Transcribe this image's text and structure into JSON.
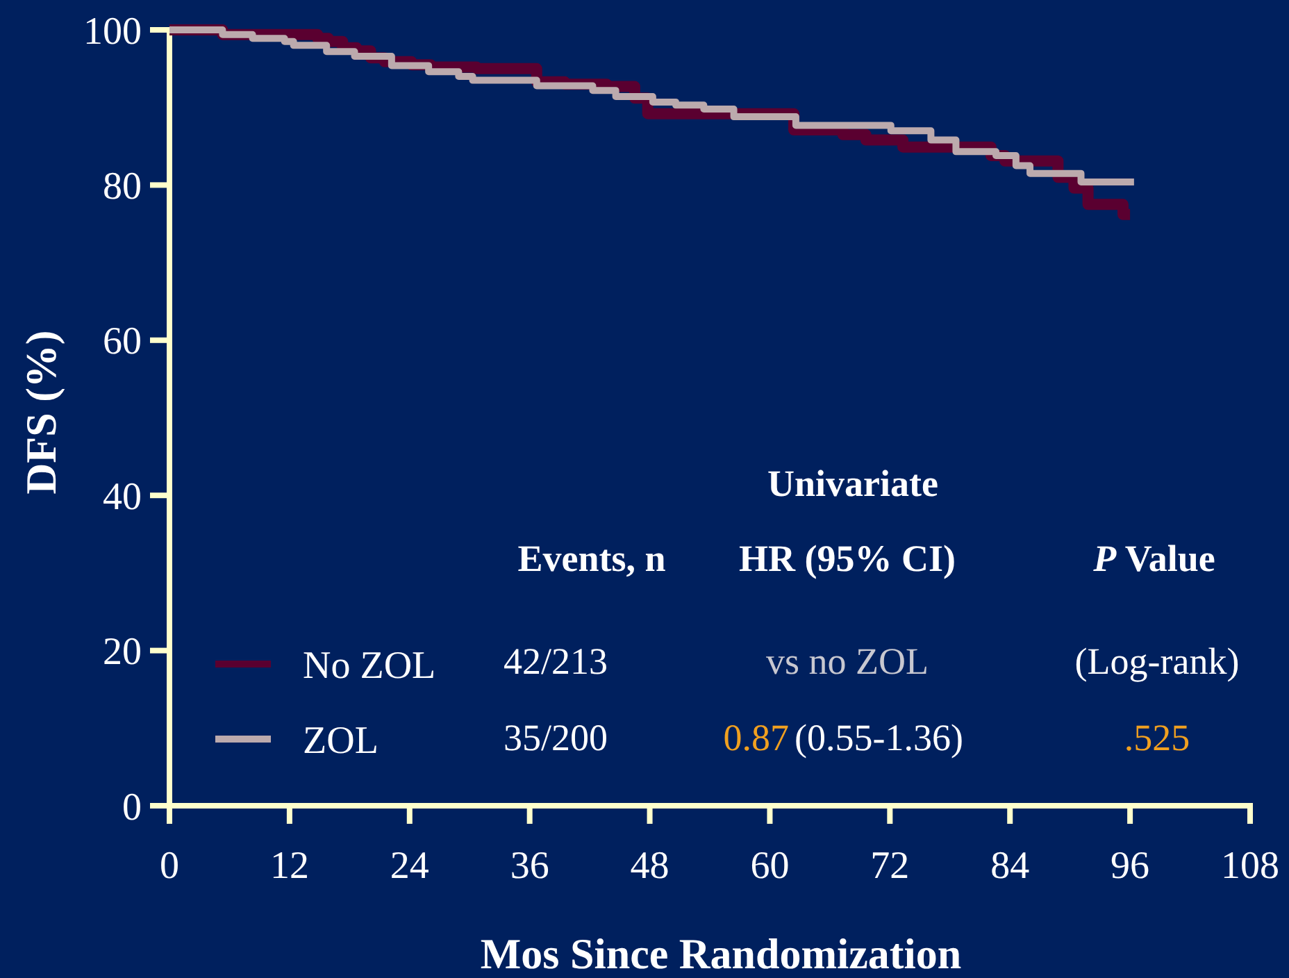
{
  "chart_data": {
    "type": "step",
    "xlabel": "Mos Since Randomization",
    "ylabel": "DFS (%)",
    "xlim": [
      0,
      108
    ],
    "xticks": [
      0,
      12,
      24,
      36,
      48,
      60,
      72,
      84,
      96,
      108
    ],
    "ylim": [
      0,
      100
    ],
    "yticks": [
      0,
      20,
      40,
      60,
      80,
      100
    ],
    "grid": false,
    "legend": "bottom left",
    "series": [
      {
        "name": "No ZOL",
        "color": "#5a0030",
        "x": [
          0,
          5.3,
          14.8,
          15.9,
          17.3,
          18.7,
          20.1,
          21.5,
          24.2,
          26.1,
          30.7,
          36.7,
          39.5,
          43.7,
          46.5,
          47.8,
          62.4,
          67.3,
          69.6,
          73.3,
          82.1,
          83.5,
          88.8,
          90.4,
          91.8,
          95.3,
          96
        ],
        "values": [
          100,
          99.4,
          98.9,
          98.5,
          97.7,
          97.3,
          96.4,
          95.9,
          95.5,
          95.2,
          95.0,
          93.3,
          93.0,
          92.7,
          91.2,
          89.2,
          87.1,
          86.5,
          85.8,
          84.9,
          83.8,
          83.1,
          81.0,
          79.6,
          77.5,
          76.2,
          76.2
        ]
      },
      {
        "name": "ZOL",
        "color": "#bcaaad",
        "x": [
          0,
          5.3,
          8.3,
          11.5,
          12.4,
          15.7,
          18.5,
          22.2,
          25.9,
          28.9,
          30.3,
          36.7,
          42.3,
          44.6,
          48.3,
          50.6,
          53.4,
          56.4,
          62.6,
          72.1,
          76.1,
          78.6,
          82.6,
          84.6,
          86.0,
          91.1,
          96.4
        ],
        "values": [
          100,
          99.4,
          98.9,
          98.5,
          98.0,
          97.2,
          96.6,
          95.4,
          94.6,
          94.0,
          93.5,
          92.8,
          92.2,
          91.4,
          90.7,
          90.3,
          89.8,
          88.8,
          87.7,
          87.0,
          85.8,
          84.3,
          83.8,
          82.5,
          81.5,
          80.4,
          80.4
        ]
      }
    ],
    "annotations": [
      "Univariate",
      "Events, n",
      "HR (95% CI)",
      "P Value",
      "42/213",
      "vs no ZOL",
      "(Log-rank)",
      "35/200",
      "0.87",
      "(0.55-1.36)",
      ".525"
    ]
  }
}
